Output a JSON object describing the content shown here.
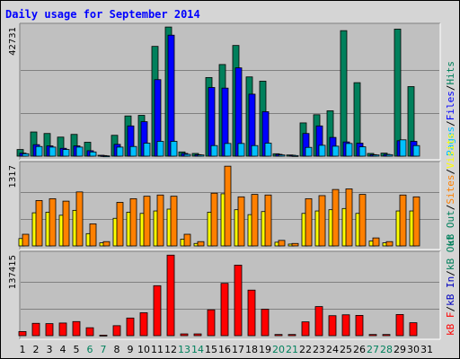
{
  "title": "Daily usage for September 2014",
  "colors": {
    "title": "#0000ff",
    "hits": "#00805c",
    "files": "#0000ff",
    "pages": "#00c0ff",
    "visits": "#ffff00",
    "sites": "#ff8000",
    "kb_in": "#0000c0",
    "kb_out": "#00805c",
    "kb_f": "#ff0000",
    "weekday": "#000000",
    "weekend": "#00805c",
    "panel_bg": "#c0c0c0",
    "frame_bg": "#d5d5d5"
  },
  "legend": {
    "top": [
      {
        "text": "Pages",
        "color": "#00c0ff"
      },
      {
        "text": "/",
        "color": "#000000"
      },
      {
        "text": "Files",
        "color": "#0000ff"
      },
      {
        "text": "/",
        "color": "#000000"
      },
      {
        "text": "Hits",
        "color": "#00805c"
      }
    ],
    "middle": [
      {
        "text": "kB Out",
        "color": "#00805c"
      },
      {
        "text": "/",
        "color": "#000000"
      },
      {
        "text": "Sites",
        "color": "#ff8000"
      },
      {
        "text": "/",
        "color": "#000000"
      },
      {
        "text": "Visits",
        "color": "#ffff00"
      }
    ],
    "bottom": [
      {
        "text": "kB F",
        "color": "#ff0000"
      },
      {
        "text": "/",
        "color": "#000000"
      },
      {
        "text": "kB In",
        "color": "#0000c0"
      },
      {
        "text": "/",
        "color": "#000000"
      },
      {
        "text": "kB Out",
        "color": "#00805c"
      }
    ]
  },
  "chart_data": {
    "type": "bar",
    "title": "Daily usage for September 2014",
    "categories": [
      "1",
      "2",
      "3",
      "4",
      "5",
      "6",
      "7",
      "8",
      "9",
      "10",
      "11",
      "12",
      "13",
      "14",
      "15",
      "16",
      "17",
      "18",
      "19",
      "20",
      "21",
      "22",
      "23",
      "24",
      "25",
      "26",
      "27",
      "28",
      "29",
      "30",
      "31"
    ],
    "weekend_days": [
      "6",
      "7",
      "13",
      "14",
      "20",
      "21",
      "27",
      "28"
    ],
    "panels": [
      {
        "id": "hits-files-pages",
        "max_label": "42731",
        "ylim": [
          0,
          42731
        ],
        "series": [
          {
            "name": "Hits",
            "color": "#00805c",
            "values": [
              2200,
              8000,
              7500,
              6300,
              7200,
              4600,
              300,
              6900,
              13300,
              13500,
              36300,
              42700,
              1400,
              900,
              26000,
              30300,
              36600,
              26200,
              24800,
              800,
              400,
              11000,
              13700,
              15000,
              41500,
              24300,
              900,
              1000,
              42000,
              23000,
              0
            ]
          },
          {
            "name": "Files",
            "color": "#0000ff",
            "values": [
              1000,
              3800,
              3400,
              2600,
              3400,
              1800,
              200,
              3900,
              10000,
              11400,
              25300,
              40000,
              900,
              500,
              22700,
              22500,
              29200,
              20500,
              14700,
              600,
              300,
              7500,
              10000,
              6200,
              4700,
              4300,
              500,
              600,
              5100,
              4900,
              0
            ]
          },
          {
            "name": "Pages",
            "color": "#00c0ff",
            "values": [
              800,
              3200,
              3000,
              2200,
              3000,
              1400,
              100,
              3000,
              3200,
              4300,
              4900,
              4900,
              600,
              400,
              3500,
              4200,
              4200,
              3500,
              4300,
              400,
              200,
              2900,
              3600,
              3300,
              4200,
              3100,
              400,
              500,
              5400,
              3500,
              0
            ]
          }
        ]
      },
      {
        "id": "visits-sites",
        "max_label": "1317",
        "ylim": [
          0,
          1317
        ],
        "series": [
          {
            "name": "Sites",
            "color": "#ff8000",
            "values": [
              190,
              740,
              770,
              730,
              880,
              360,
              70,
              710,
              770,
              810,
              830,
              810,
              190,
              70,
              860,
              1300,
              800,
              840,
              830,
              90,
              40,
              770,
              820,
              920,
              930,
              840,
              130,
              70,
              830,
              800,
              0
            ]
          },
          {
            "name": "Visits",
            "color": "#ffff00",
            "values": [
              120,
              540,
              550,
              500,
              580,
              200,
              50,
              450,
              550,
              530,
              570,
              600,
              110,
              40,
              550,
              850,
              590,
              510,
              560,
              60,
              30,
              530,
              570,
              590,
              610,
              530,
              80,
              50,
              570,
              570,
              0
            ]
          }
        ]
      },
      {
        "id": "kbf",
        "max_label": "137415",
        "ylim": [
          0,
          137415
        ],
        "series": [
          {
            "name": "kB F",
            "color": "#ff0000",
            "values": [
              7000,
              21000,
              20500,
              21500,
              24000,
              13500,
              900,
              17000,
              30000,
              39000,
              85000,
              137000,
              3000,
              3000,
              44000,
              89000,
              120000,
              77500,
              45000,
              2000,
              2000,
              23500,
              49500,
              34000,
              35500,
              34500,
              2000,
              2000,
              36000,
              22000,
              0
            ]
          }
        ]
      }
    ]
  }
}
